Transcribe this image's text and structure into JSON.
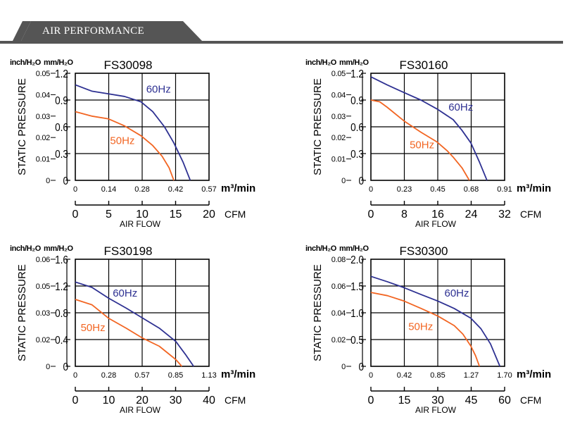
{
  "header": {
    "title": "AIR PERFORMANCE"
  },
  "colors": {
    "header_bg": "#555555",
    "series_60hz": "#2e3192",
    "series_50hz": "#f26522",
    "grid": "#000000"
  },
  "chart_data": [
    {
      "type": "line",
      "title": "FS30098",
      "ylabel": "STATIC PRESSURE",
      "xlabel": "AIR FLOW",
      "y_unit_inch": "inch/H₂O",
      "y_unit_mm": "mm/H₂O",
      "x_unit_m3": "m³/min",
      "x_unit_cfm": "CFM",
      "yticks_inch": [
        "0.05",
        "0.04",
        "0.03",
        "0.02",
        "0.01",
        "0"
      ],
      "yticks_mm": [
        "1.2",
        "0.9",
        "0.6",
        "0.3",
        "0"
      ],
      "xticks_m3": [
        "0",
        "0.14",
        "0.28",
        "0.42",
        "0.57"
      ],
      "xticks_cfm": [
        "0",
        "5",
        "10",
        "15",
        "20"
      ],
      "xlim": [
        0,
        0.57
      ],
      "ylim": [
        0,
        1.2
      ],
      "series": [
        {
          "name": "60Hz",
          "x": [
            0,
            0.07,
            0.14,
            0.21,
            0.28,
            0.33,
            0.38,
            0.42,
            0.46,
            0.49
          ],
          "values": [
            1.07,
            1.0,
            0.97,
            0.94,
            0.88,
            0.77,
            0.6,
            0.42,
            0.2,
            0
          ]
        },
        {
          "name": "50Hz",
          "x": [
            0,
            0.07,
            0.14,
            0.21,
            0.28,
            0.33,
            0.37,
            0.4,
            0.42
          ],
          "values": [
            0.77,
            0.72,
            0.69,
            0.61,
            0.5,
            0.39,
            0.27,
            0.14,
            0
          ]
        }
      ]
    },
    {
      "type": "line",
      "title": "FS30160",
      "ylabel": "STATIC PRESSURE",
      "xlabel": "AIR FLOW",
      "y_unit_inch": "inch/H₂O",
      "y_unit_mm": "mm/H₂O",
      "x_unit_m3": "m³/min",
      "x_unit_cfm": "CFM",
      "yticks_inch": [
        "0.05",
        "0.04",
        "0.03",
        "0.02",
        "0.01",
        "0"
      ],
      "yticks_mm": [
        "1.2",
        "0.9",
        "0.6",
        "0.3",
        "0"
      ],
      "xticks_m3": [
        "0",
        "0.23",
        "0.45",
        "0.68",
        "0.91"
      ],
      "xticks_cfm": [
        "0",
        "8",
        "16",
        "24",
        "32"
      ],
      "xlim": [
        0,
        0.91
      ],
      "ylim": [
        0,
        1.2
      ],
      "series": [
        {
          "name": "60Hz",
          "x": [
            0,
            0.11,
            0.23,
            0.34,
            0.45,
            0.56,
            0.62,
            0.68,
            0.74,
            0.79
          ],
          "values": [
            1.16,
            1.07,
            0.98,
            0.9,
            0.8,
            0.68,
            0.56,
            0.42,
            0.2,
            0
          ]
        },
        {
          "name": "50Hz",
          "x": [
            0,
            0.06,
            0.11,
            0.23,
            0.34,
            0.45,
            0.52,
            0.56,
            0.62,
            0.67
          ],
          "values": [
            0.9,
            0.88,
            0.82,
            0.66,
            0.54,
            0.43,
            0.33,
            0.26,
            0.14,
            0
          ]
        }
      ]
    },
    {
      "type": "line",
      "title": "FS30198",
      "ylabel": "STATIC PRESSURE",
      "xlabel": "AIR FLOW",
      "y_unit_inch": "inch/H₂O",
      "y_unit_mm": "mm/H₂O",
      "x_unit_m3": "m³/min",
      "x_unit_cfm": "CFM",
      "yticks_inch": [
        "0.06",
        "0.05",
        "0.03",
        "0.02",
        "0"
      ],
      "yticks_mm": [
        "1.6",
        "1.2",
        "0.8",
        "0.4",
        "0"
      ],
      "xticks_m3": [
        "0",
        "0.28",
        "0.57",
        "0.85",
        "1.13"
      ],
      "xticks_cfm": [
        "0",
        "10",
        "20",
        "30",
        "40"
      ],
      "xlim": [
        0,
        1.13
      ],
      "ylim": [
        0,
        1.6
      ],
      "series": [
        {
          "name": "60Hz",
          "x": [
            0,
            0.14,
            0.28,
            0.43,
            0.57,
            0.71,
            0.85,
            0.93,
            1.0
          ],
          "values": [
            1.26,
            1.18,
            1.02,
            0.87,
            0.72,
            0.57,
            0.37,
            0.18,
            0
          ]
        },
        {
          "name": "50Hz",
          "x": [
            0,
            0.14,
            0.28,
            0.43,
            0.57,
            0.71,
            0.78,
            0.85,
            0.9
          ],
          "values": [
            1.0,
            0.92,
            0.72,
            0.57,
            0.42,
            0.3,
            0.2,
            0.1,
            0
          ]
        }
      ]
    },
    {
      "type": "line",
      "title": "FS30300",
      "ylabel": "STATIC PRESSURE",
      "xlabel": "AIR FLOW",
      "y_unit_inch": "inch/H₂O",
      "y_unit_mm": "mm/H₂O",
      "x_unit_m3": "m³/min",
      "x_unit_cfm": "CFM",
      "yticks_inch": [
        "0.08",
        "0.06",
        "0.04",
        "0.02",
        "0"
      ],
      "yticks_mm": [
        "2.0",
        "1.5",
        "1.0",
        "0.5",
        "0"
      ],
      "xticks_m3": [
        "0",
        "0.42",
        "0.85",
        "1.27",
        "1.70"
      ],
      "xticks_cfm": [
        "0",
        "15",
        "30",
        "45",
        "60"
      ],
      "xlim": [
        0,
        1.7
      ],
      "ylim": [
        0,
        2.0
      ],
      "series": [
        {
          "name": "60Hz",
          "x": [
            0,
            0.21,
            0.42,
            0.64,
            0.85,
            1.06,
            1.27,
            1.4,
            1.52,
            1.64
          ],
          "values": [
            1.68,
            1.58,
            1.47,
            1.34,
            1.22,
            1.08,
            0.9,
            0.7,
            0.42,
            0
          ]
        },
        {
          "name": "50Hz",
          "x": [
            0,
            0.21,
            0.42,
            0.64,
            0.85,
            1.06,
            1.17,
            1.27,
            1.33,
            1.38
          ],
          "values": [
            1.38,
            1.32,
            1.22,
            1.08,
            0.94,
            0.76,
            0.6,
            0.38,
            0.2,
            0
          ]
        }
      ]
    }
  ]
}
